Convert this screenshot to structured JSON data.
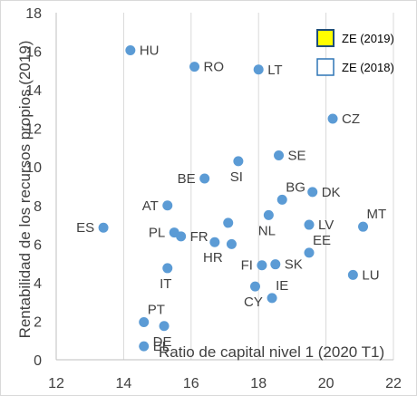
{
  "chart_data": {
    "type": "scatter",
    "xlabel": "Ratio de capital nivel 1 (2020 T1)",
    "ylabel": "Rentabilidad de los recursos propios (2019)",
    "xlim": [
      12,
      22
    ],
    "ylim": [
      0,
      18
    ],
    "xticks": [
      "12",
      "14",
      "16",
      "18",
      "20",
      "22"
    ],
    "yticks": [
      "0",
      "2",
      "4",
      "6",
      "8",
      "10",
      "12",
      "14",
      "16",
      "18"
    ],
    "grid": {
      "vertical": true,
      "horizontal": false
    },
    "legend": {
      "placement": "top-right",
      "entries": [
        {
          "label": "ZE (2019)",
          "fill": "#ffff00",
          "stroke": "#1f4e79"
        },
        {
          "label": "ZE (2018)",
          "fill": "#ffffff",
          "stroke": "#2e75b6"
        }
      ]
    },
    "marker_color": "#5b9bd5",
    "points": [
      {
        "label": "HU",
        "x": 14.2,
        "y": 16.05,
        "label_pos": "right"
      },
      {
        "label": "RO",
        "x": 16.1,
        "y": 15.2,
        "label_pos": "right"
      },
      {
        "label": "LT",
        "x": 18.0,
        "y": 15.05,
        "label_pos": "right"
      },
      {
        "label": "CZ",
        "x": 20.2,
        "y": 12.5,
        "label_pos": "right"
      },
      {
        "label": "SE",
        "x": 18.6,
        "y": 10.6,
        "label_pos": "right"
      },
      {
        "label": "SI",
        "x": 17.4,
        "y": 10.3,
        "label_pos": "below"
      },
      {
        "label": "BE",
        "x": 16.4,
        "y": 9.4,
        "label_pos": "left"
      },
      {
        "label": "BG",
        "x": 18.7,
        "y": 8.3,
        "label_pos": "above"
      },
      {
        "label": "DK",
        "x": 19.6,
        "y": 8.7,
        "label_pos": "right"
      },
      {
        "label": "AT",
        "x": 15.3,
        "y": 8.0,
        "label_pos": "left"
      },
      {
        "label": "ES",
        "x": 13.4,
        "y": 6.85,
        "label_pos": "left"
      },
      {
        "label": "NL",
        "x": 18.3,
        "y": 7.5,
        "label_pos": "below"
      },
      {
        "label": "LV",
        "x": 19.5,
        "y": 7.0,
        "label_pos": "right"
      },
      {
        "label": "MT",
        "x": 21.1,
        "y": 6.9,
        "label_pos": "above"
      },
      {
        "label": "",
        "x": 17.1,
        "y": 7.1,
        "label_pos": "none"
      },
      {
        "label": "PL",
        "x": 15.5,
        "y": 6.6,
        "label_pos": "left"
      },
      {
        "label": "FR",
        "x": 15.7,
        "y": 6.4,
        "label_pos": "right"
      },
      {
        "label": "HR",
        "x": 16.7,
        "y": 6.1,
        "label_pos": "below"
      },
      {
        "label": "",
        "x": 17.2,
        "y": 6.0,
        "label_pos": "none"
      },
      {
        "label": "EE",
        "x": 19.5,
        "y": 5.55,
        "label_pos": "above"
      },
      {
        "label": "FI",
        "x": 18.1,
        "y": 4.9,
        "label_pos": "left"
      },
      {
        "label": "SK",
        "x": 18.5,
        "y": 4.95,
        "label_pos": "right"
      },
      {
        "label": "IT",
        "x": 15.3,
        "y": 4.75,
        "label_pos": "below"
      },
      {
        "label": "LU",
        "x": 20.8,
        "y": 4.4,
        "label_pos": "right"
      },
      {
        "label": "CY",
        "x": 17.9,
        "y": 3.8,
        "label_pos": "below"
      },
      {
        "label": "IE",
        "x": 18.4,
        "y": 3.2,
        "label_pos": "above"
      },
      {
        "label": "PT",
        "x": 14.6,
        "y": 1.95,
        "label_pos": "above"
      },
      {
        "label": "DE",
        "x": 15.2,
        "y": 1.75,
        "label_pos": "below"
      },
      {
        "label": "EL",
        "x": 14.6,
        "y": 0.7,
        "label_pos": "right"
      }
    ]
  }
}
